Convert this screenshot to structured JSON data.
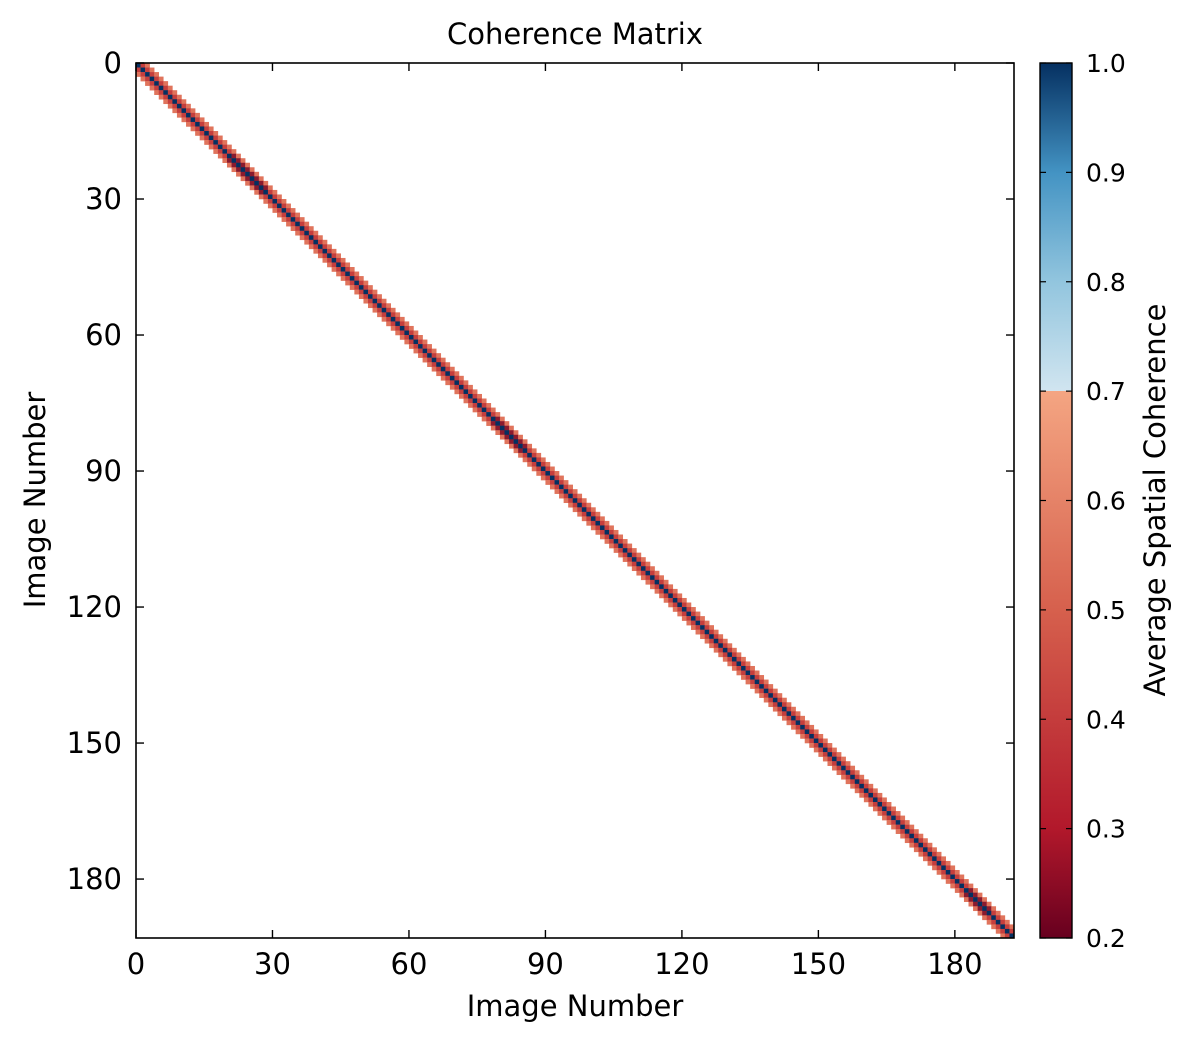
{
  "chart_data": {
    "type": "heatmap",
    "title": "Coherence Matrix",
    "xlabel": "Image Number",
    "ylabel": "Image Number",
    "n_images": 193,
    "xlim": [
      0,
      193
    ],
    "ylim": [
      193,
      0
    ],
    "x_ticks": [
      0,
      30,
      60,
      90,
      120,
      150,
      180
    ],
    "y_ticks": [
      0,
      30,
      60,
      90,
      120,
      150,
      180
    ],
    "grid": false,
    "colorbar": {
      "label": "Average Spatial Coherence",
      "range": [
        0.2,
        1.0
      ],
      "ticks": [
        "0.2",
        "0.3",
        "0.4",
        "0.5",
        "0.6",
        "0.7",
        "0.8",
        "0.9",
        "1.0"
      ],
      "colormap": "RdBu (discontinuous: 0.2–0.7 red to light orange, 0.7–1.0 light blue to dark blue)"
    },
    "structure": "Only the main diagonal and its immediate neighbours carry values; all other cells are blank.",
    "diagonal_value": 1.0,
    "off_diagonal_band": [
      {
        "offset": 1,
        "value": 0.45
      },
      {
        "offset": 2,
        "value": 0.62
      }
    ],
    "darker_segments": [
      {
        "image_range": [
          21,
          27
        ],
        "offset1_value": 0.32
      },
      {
        "image_range": [
          79,
          84
        ],
        "offset1_value": 0.3
      },
      {
        "image_range": [
          183,
          186
        ],
        "offset1_value": 0.24
      }
    ],
    "colors": {
      "diagonal": "#053061",
      "band_1": "#c53e3d",
      "band_2": "#e0745c",
      "dark_segment": "#8a1a2e"
    }
  }
}
